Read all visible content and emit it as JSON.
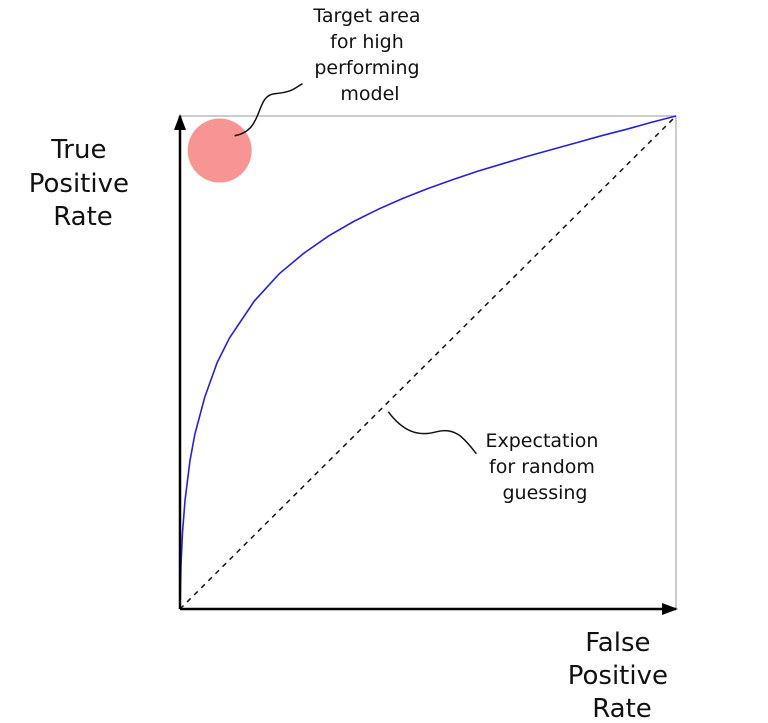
{
  "chart_data": {
    "type": "line",
    "title": "",
    "xlabel": [
      "False",
      "Positive",
      "Rate"
    ],
    "ylabel": [
      "True",
      "Positive",
      "Rate"
    ],
    "xlim": [
      0,
      1
    ],
    "ylim": [
      0,
      1
    ],
    "grid": false,
    "series": [
      {
        "role": "roc-curve",
        "color": "#2222dd",
        "style": "solid",
        "x": [
          0,
          0.002,
          0.005,
          0.01,
          0.02,
          0.03,
          0.05,
          0.075,
          0.1,
          0.15,
          0.2,
          0.25,
          0.3,
          0.35,
          0.4,
          0.45,
          0.5,
          0.55,
          0.6,
          0.65,
          0.7,
          0.75,
          0.8,
          0.85,
          0.9,
          0.95,
          1.0
        ],
        "y": [
          0,
          0.09,
          0.155,
          0.22,
          0.3,
          0.355,
          0.43,
          0.5,
          0.55,
          0.625,
          0.68,
          0.722,
          0.757,
          0.786,
          0.811,
          0.833,
          0.853,
          0.871,
          0.888,
          0.903,
          0.918,
          0.932,
          0.946,
          0.96,
          0.973,
          0.987,
          1.0
        ]
      },
      {
        "role": "random-guess-line",
        "color": "#111111",
        "style": "dashed",
        "x": [
          0,
          1
        ],
        "y": [
          0,
          1
        ]
      }
    ],
    "target": {
      "x": 0.08,
      "y": 0.93,
      "color": "#f79494"
    },
    "annotations": [
      {
        "id": "target",
        "lines": [
          "Target area",
          "for high",
          "performing",
          "model"
        ],
        "point": {
          "x": 0.11,
          "y": 0.96
        }
      },
      {
        "id": "random",
        "lines": [
          "Expectation",
          "for random",
          "guessing"
        ],
        "point": {
          "x": 0.42,
          "y": 0.4
        }
      }
    ]
  }
}
